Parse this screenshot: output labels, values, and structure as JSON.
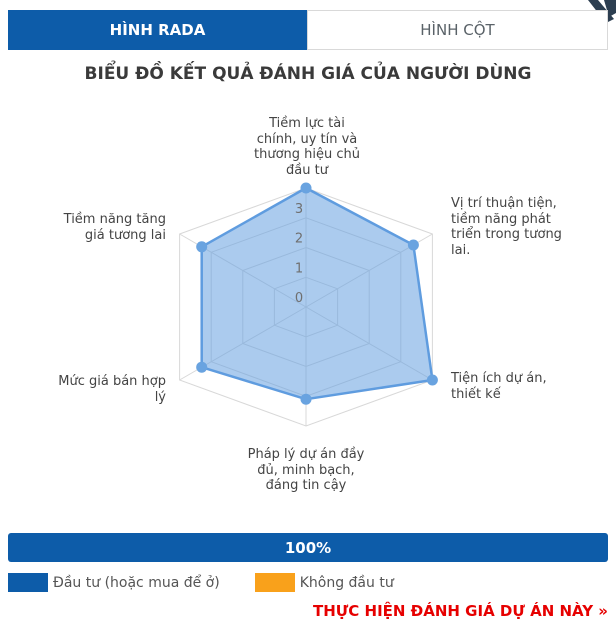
{
  "tabs": {
    "radar": {
      "label": "HÌNH RADA"
    },
    "column": {
      "label": "HÌNH CỘT"
    }
  },
  "title": "BIỂU ĐỒ KẾT QUẢ ĐÁNH GIÁ CỦA NGƯỜI DÙNG",
  "chart_data": {
    "type": "radar",
    "title": "BIỂU ĐỒ KẾT QUẢ ĐÁNH GIÁ CỦA NGƯỜI DÙNG",
    "max": 4,
    "ticks": [
      0,
      1,
      2,
      3
    ],
    "grid": "polygon-web",
    "axes": [
      {
        "label": "Tiềm lực tài chính, uy tín và thương hiệu chủ đầu tư",
        "lines": [
          "Tiềm lực tài",
          "chính, uy tín và",
          "thương hiệu chủ",
          "đầu tư"
        ],
        "value": 4.0
      },
      {
        "label": "Vị trí thuận tiện, tiềm năng phát triển trong tương lai.",
        "lines": [
          "Vị trí thuận tiện,",
          "tiềm năng phát",
          "triển trong tương",
          "lai."
        ],
        "value": 3.4
      },
      {
        "label": "Tiện ích dự án, thiết kế",
        "lines": [
          "Tiện ích dự án,",
          "thiết kế"
        ],
        "value": 4.0
      },
      {
        "label": "Pháp lý dự án đầy đủ, minh bạch, đáng tin cậy",
        "lines": [
          "Pháp lý dự án đầy",
          "đủ, minh bạch,",
          "đáng tin cậy"
        ],
        "value": 3.1
      },
      {
        "label": "Mức giá bán hợp lý",
        "lines": [
          "Mức giá bán hợp",
          "lý"
        ],
        "value": 3.3
      },
      {
        "label": "Tiềm năng tăng giá tương lai",
        "lines": [
          "Tiềm năng tăng",
          "giá tương lai"
        ],
        "value": 3.3
      }
    ],
    "series_name": "Đầu tư (hoặc mua để ở)",
    "fill_color": "rgba(102,160,224,0.55)",
    "line_color": "#5f9cdf",
    "point_color": "#69a3e0",
    "grid_color": "#d8d8d8",
    "tick_color": "#6f6f6f"
  },
  "progress": {
    "label": "100%"
  },
  "legend": {
    "items": [
      {
        "label": "Đầu tư (hoặc mua để ở)",
        "color": "#0d5ca9"
      },
      {
        "label": "Không đầu tư",
        "color": "#f9a11b"
      }
    ]
  },
  "action_link": {
    "label": "THỰC HIỆN ĐÁNH GIÁ DỰ ÁN NÀY »"
  },
  "colors": {
    "accent_blue": "#0d5ca9",
    "orange": "#f9a11b",
    "link_red": "#e60000"
  }
}
